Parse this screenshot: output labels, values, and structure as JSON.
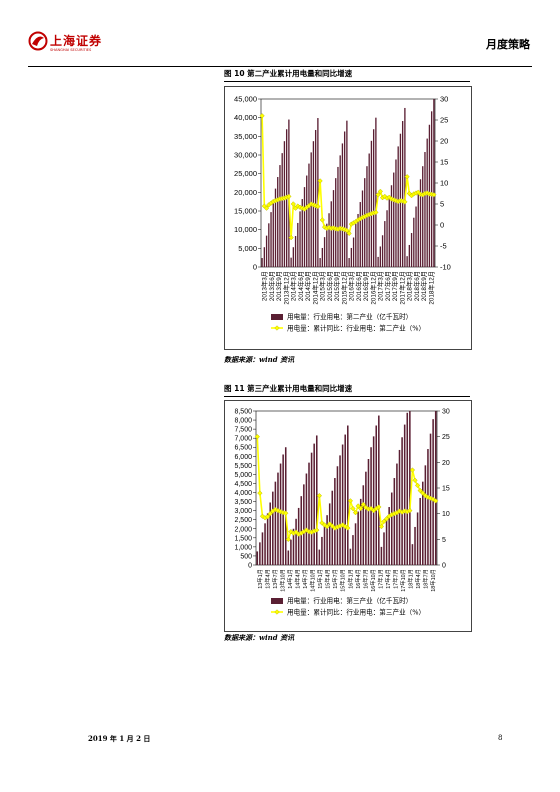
{
  "header": {
    "company": "上海证券",
    "company_en": "SHANGHAI SECURITIES",
    "report_type": "月度策略",
    "colors": {
      "brand": "#c00000"
    }
  },
  "figure10": {
    "title": "图 10 第二产业累计用电量和同比增速",
    "source": "数据来源：wind 资讯"
  },
  "figure11": {
    "title": "图 11 第三产业累计用电量和同比增速",
    "source": "数据来源：wind 资讯"
  },
  "footer": {
    "date": "2019 年 1 月 2 日",
    "page": "8"
  },
  "chart_data": [
    {
      "type": "bar+line",
      "colors": {
        "bar": "#5a1f33",
        "line": "#ffff00",
        "marker_edge": "#b8b800"
      },
      "left_ticks": [
        "45,000",
        "40,000",
        "35,000",
        "30,000",
        "25,000",
        "20,000",
        "15,000",
        "10,000",
        "5,000",
        "0"
      ],
      "right_ticks": [
        "30",
        "25",
        "20",
        "15",
        "10",
        "5",
        "0",
        "-5",
        "-10"
      ],
      "ylim_left": [
        0,
        45000
      ],
      "ylim_right": [
        -10,
        30
      ],
      "x_labels": [
        "2013年3月",
        "2013年6月",
        "2013年9月",
        "2013年12月",
        "2014年3月",
        "2014年6月",
        "2014年9月",
        "2014年12月",
        "2015年3月",
        "2015年6月",
        "2015年9月",
        "2015年12月",
        "2016年3月",
        "2016年6月",
        "2016年9月",
        "2016年12月",
        "2017年3月",
        "2017年6月",
        "2017年9月",
        "2017年12月",
        "2018年3月",
        "2018年6月",
        "2018年9月",
        "2018年12月"
      ],
      "series": [
        {
          "name": "用电量：行业用电：第二产业（亿千瓦时）",
          "axis": "left",
          "kind": "bar",
          "values": [
            2400,
            5300,
            8400,
            11700,
            14700,
            17800,
            21000,
            24100,
            27300,
            30500,
            33700,
            36900,
            39500,
            2500,
            5300,
            8300,
            11800,
            14900,
            18200,
            21400,
            24500,
            27700,
            30700,
            33700,
            36700,
            39900,
            2400,
            5100,
            8000,
            11600,
            14400,
            17600,
            20600,
            23800,
            26800,
            29900,
            33100,
            36300,
            39200,
            2400,
            5100,
            7900,
            11500,
            14200,
            17400,
            20500,
            23800,
            27000,
            30400,
            33800,
            36900,
            40000,
            2700,
            5500,
            8500,
            12300,
            15200,
            18600,
            21900,
            25300,
            28800,
            32300,
            35700,
            39100,
            42600,
            2900,
            5900,
            9100,
            13200,
            16200,
            19900,
            23500,
            27000,
            30800,
            34400,
            38100,
            41700,
            45000
          ]
        },
        {
          "name": "用电量：累计同比：行业用电：第二产业（%）",
          "axis": "right",
          "kind": "line",
          "values": [
            26,
            4.5,
            4.0,
            4.8,
            5.2,
            5.6,
            5.8,
            6.0,
            6.2,
            6.3,
            6.4,
            6.6,
            6.8,
            -3,
            5.0,
            4.0,
            4.5,
            4.2,
            4.0,
            3.8,
            4.2,
            4.6,
            5.0,
            4.8,
            4.6,
            4.4,
            10.5,
            1.2,
            -0.5,
            -0.8,
            -0.6,
            -0.8,
            -0.7,
            -0.9,
            -1.0,
            -0.8,
            -0.9,
            -1.1,
            -1.3,
            -2.0,
            0.2,
            0.5,
            0.8,
            1.2,
            1.5,
            1.8,
            2.0,
            2.3,
            2.5,
            2.7,
            2.9,
            3.0,
            7.2,
            8.0,
            6.5,
            6.8,
            6.4,
            6.6,
            6.2,
            6.0,
            5.8,
            5.6,
            5.8,
            5.7,
            5.5,
            11.5,
            7.5,
            7.0,
            7.4,
            7.6,
            7.8,
            7.3,
            7.2,
            7.5,
            7.6,
            7.4,
            7.3,
            7.2
          ]
        }
      ]
    },
    {
      "type": "bar+line",
      "colors": {
        "bar": "#5a1f33",
        "line": "#ffff00",
        "marker_edge": "#b8b800"
      },
      "left_ticks": [
        "8,500",
        "8,000",
        "7,500",
        "7,000",
        "6,500",
        "6,000",
        "5,500",
        "5,000",
        "4,500",
        "4,000",
        "3,500",
        "3,000",
        "2,500",
        "2,000",
        "1,500",
        "1,000",
        "500",
        "0"
      ],
      "right_ticks": [
        "30",
        "25",
        "20",
        "15",
        "10",
        "5",
        "0"
      ],
      "ylim_left": [
        0,
        8500
      ],
      "ylim_right": [
        0,
        30
      ],
      "x_labels": [
        "13年1月",
        "13年4月",
        "13年7月",
        "13年10月",
        "14年1月",
        "14年4月",
        "14年7月",
        "14年10月",
        "15年1月",
        "15年4月",
        "15年7月",
        "15年10月",
        "16年1月",
        "16年4月",
        "16年7月",
        "16年10月",
        "17年1月",
        "17年4月",
        "17年7月",
        "17年10月",
        "18年1月",
        "18年4月",
        "18年7月",
        "18年10月"
      ],
      "series": [
        {
          "name": "用电量：行业用电：第三产业（亿千瓦时）",
          "axis": "left",
          "kind": "bar",
          "values": [
            750,
            1250,
            1800,
            2300,
            2850,
            3450,
            4050,
            4600,
            5100,
            5600,
            6100,
            6500,
            800,
            1400,
            2000,
            2550,
            3150,
            3800,
            4450,
            5050,
            5650,
            6200,
            6700,
            7150,
            850,
            1550,
            2150,
            2750,
            3400,
            4100,
            4800,
            5450,
            6050,
            6650,
            7200,
            7700,
            900,
            1650,
            2300,
            2950,
            3650,
            4400,
            5150,
            5850,
            6500,
            7100,
            7700,
            8250,
            1000,
            1800,
            2500,
            3200,
            4000,
            4800,
            5600,
            6350,
            7050,
            7750,
            8400,
            8500,
            1150,
            2100,
            2900,
            3700,
            4600,
            5500,
            6400,
            7250,
            8050,
            8500
          ]
        },
        {
          "name": "用电量：累计同比：行业用电：第三产业（%）",
          "axis": "right",
          "kind": "line",
          "values": [
            25,
            14,
            9.5,
            9.2,
            9.4,
            10.0,
            10.5,
            10.8,
            10.6,
            10.4,
            10.2,
            10.1,
            5.0,
            6.5,
            6.2,
            6.4,
            6.0,
            6.2,
            6.5,
            6.8,
            6.5,
            6.4,
            6.6,
            6.8,
            13.5,
            8.2,
            7.8,
            7.5,
            8.0,
            7.6,
            7.2,
            7.4,
            7.6,
            7.8,
            7.5,
            7.2,
            12.5,
            11.0,
            10.2,
            11.5,
            11.0,
            11.8,
            11.2,
            10.9,
            11.0,
            10.6,
            11.0,
            11.3,
            7.5,
            8.5,
            9.0,
            9.5,
            9.8,
            10.0,
            10.2,
            10.5,
            10.3,
            10.5,
            10.4,
            10.6,
            18.5,
            16.5,
            15.5,
            14.5,
            14.0,
            13.5,
            13.2,
            13.0,
            12.8,
            12.5
          ]
        }
      ]
    }
  ]
}
